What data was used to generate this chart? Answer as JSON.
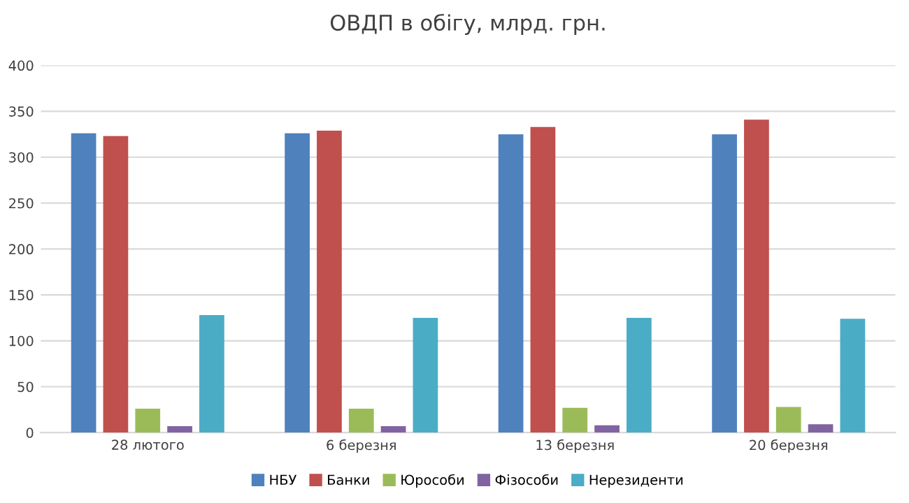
{
  "chart_data": {
    "type": "bar",
    "title": "ОВДП в обігу, млрд. грн.",
    "categories": [
      "28 лютого",
      "6 березня",
      "13 березня",
      "20 березня"
    ],
    "series": [
      {
        "name": "НБУ",
        "color": "#4f81bd",
        "values": [
          326,
          326,
          325,
          325
        ]
      },
      {
        "name": "Банки",
        "color": "#c0504d",
        "values": [
          323,
          329,
          333,
          341
        ]
      },
      {
        "name": "Юрособи",
        "color": "#9bbb59",
        "values": [
          26,
          26,
          27,
          28
        ]
      },
      {
        "name": "Фізособи",
        "color": "#8064a2",
        "values": [
          7,
          7,
          8,
          9
        ]
      },
      {
        "name": "Нерезиденти",
        "color": "#4bacc6",
        "values": [
          128,
          125,
          125,
          124
        ]
      }
    ],
    "ylim": [
      0,
      400
    ],
    "yticks": [
      0,
      50,
      100,
      150,
      200,
      250,
      300,
      350,
      400
    ],
    "grid": "y",
    "legend": "bottom"
  }
}
